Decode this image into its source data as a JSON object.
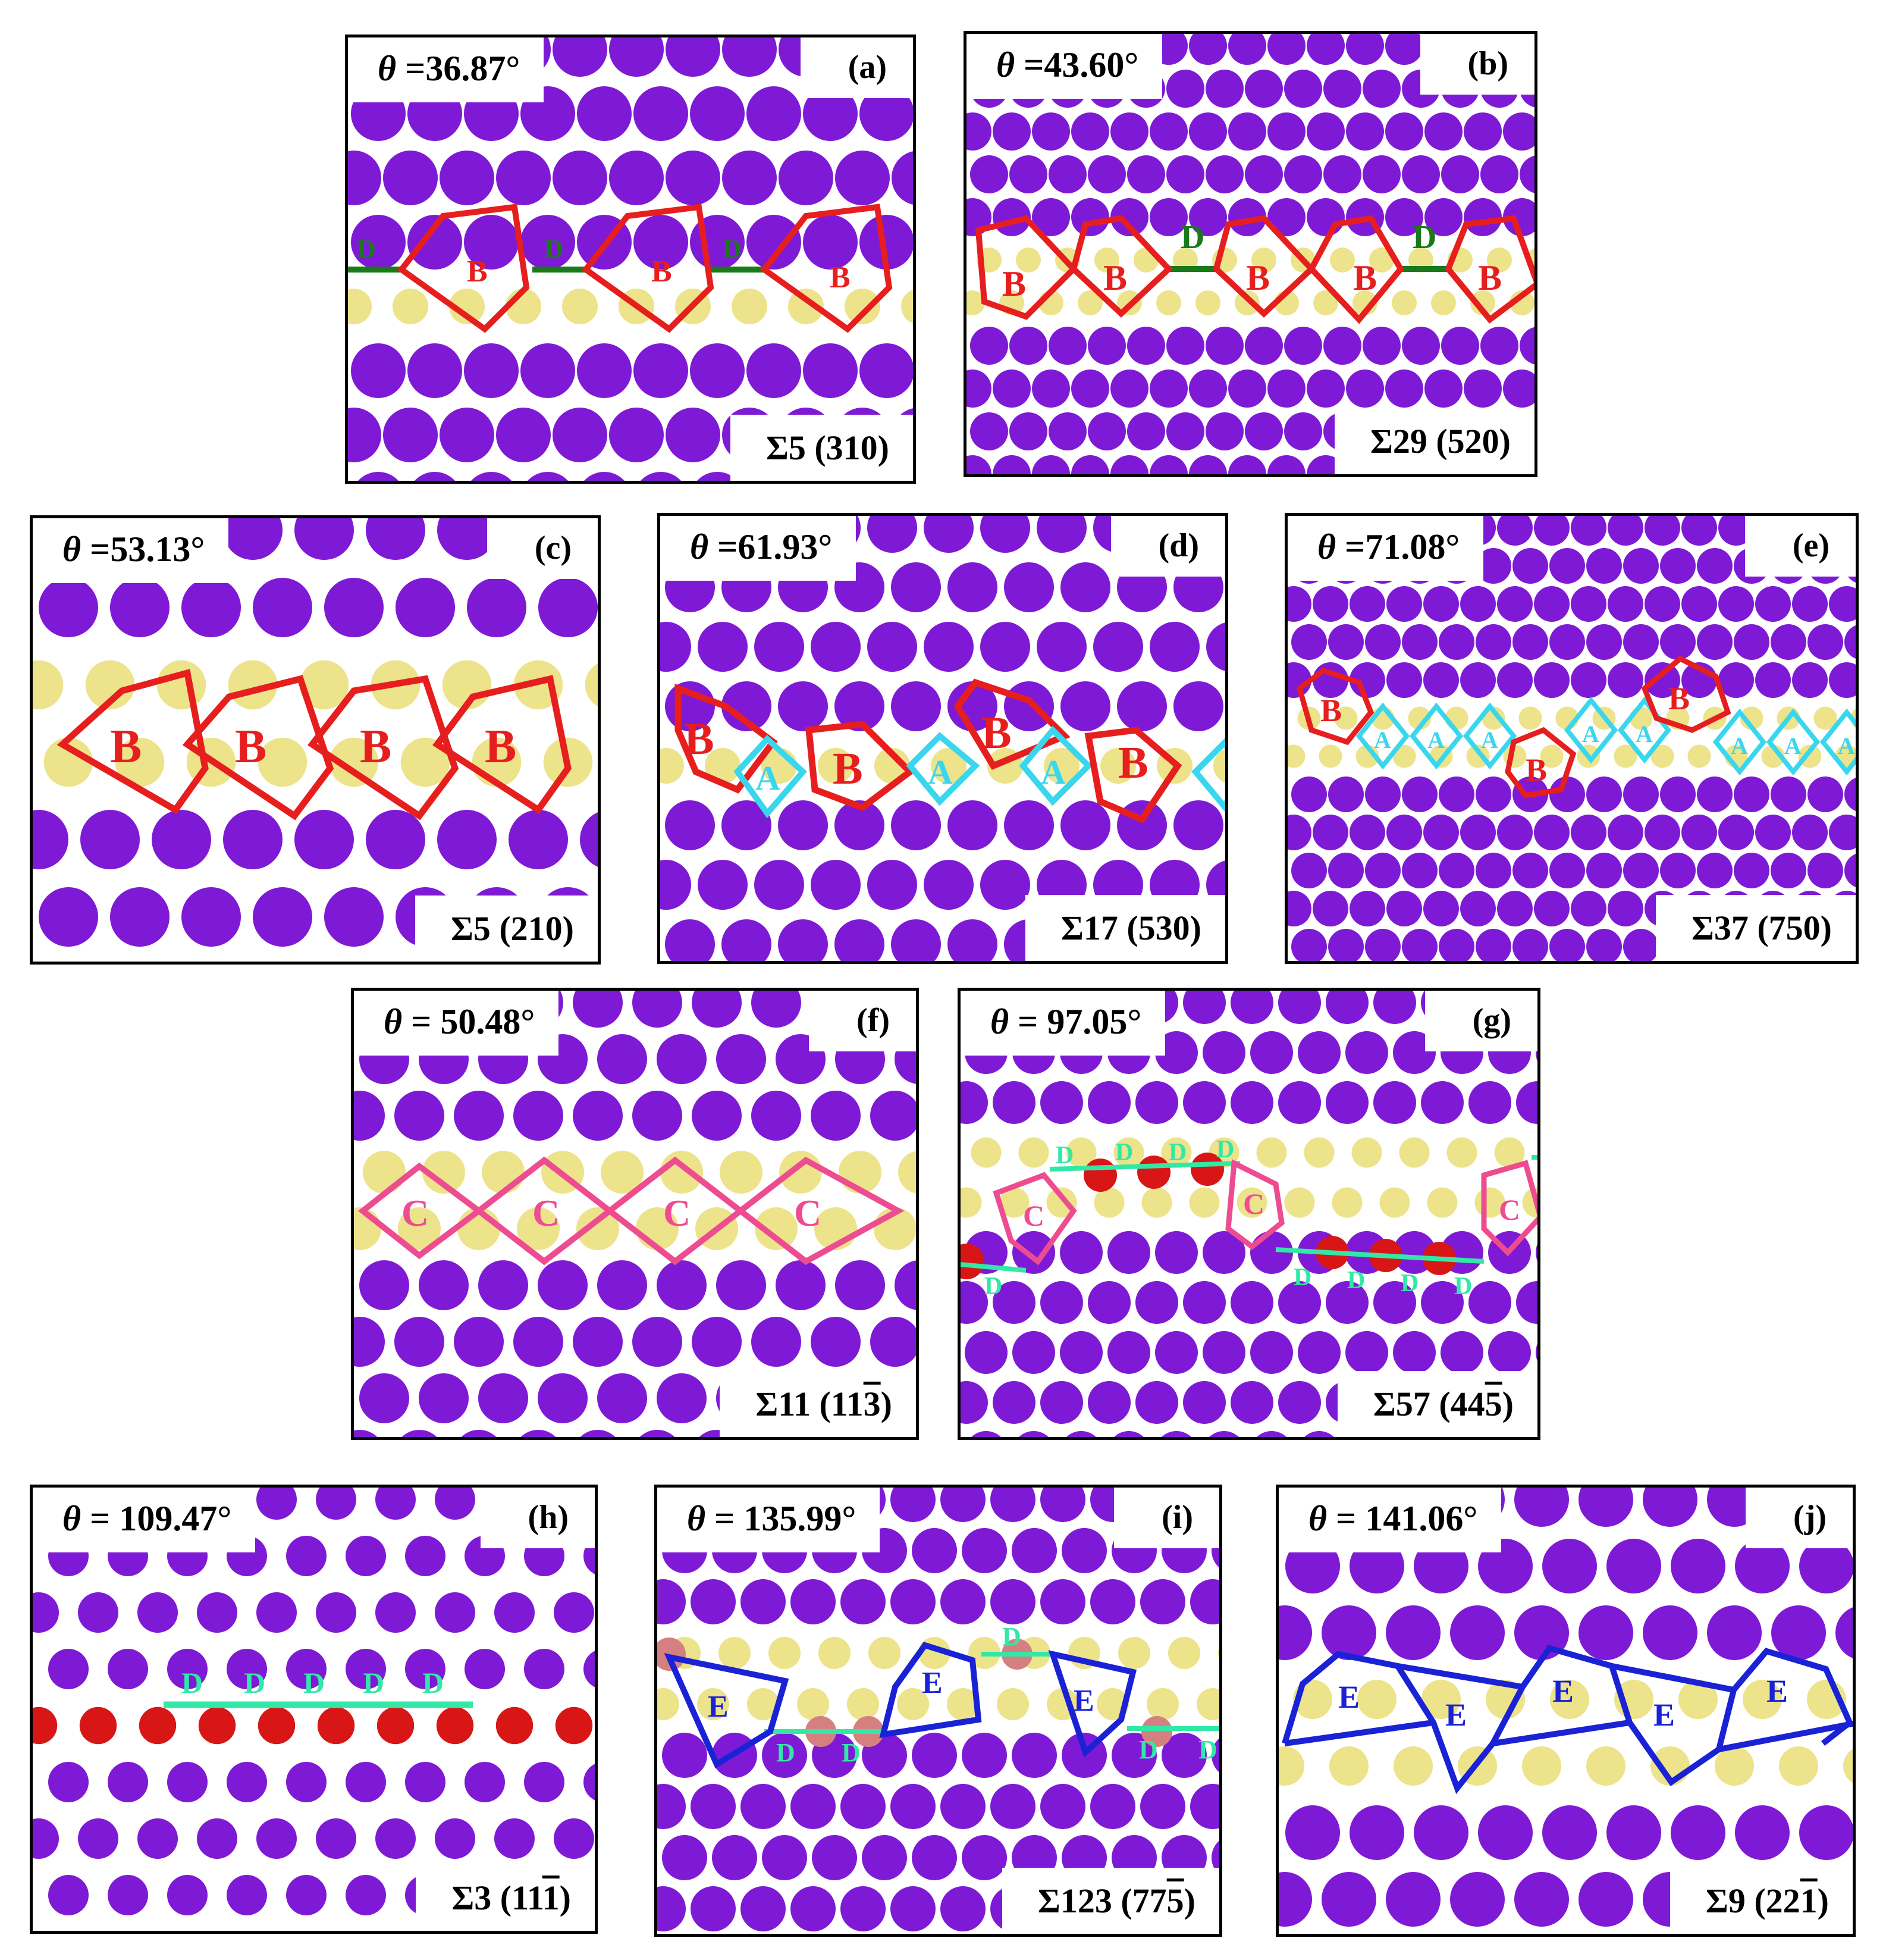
{
  "figure": {
    "panels": [
      {
        "id": "a",
        "letter": "(a)",
        "theta": "36.87°",
        "sigma": "Σ5 (310)",
        "sigma_bar": "",
        "units": [
          "B",
          "B",
          "B"
        ],
        "links": [
          "D",
          "D",
          "D"
        ]
      },
      {
        "id": "b",
        "letter": "(b)",
        "theta": "43.60°",
        "sigma": "Σ29 (520)",
        "sigma_bar": "",
        "units": [
          "B",
          "B",
          "B",
          "B",
          "B"
        ],
        "links": [
          "D",
          "D"
        ]
      },
      {
        "id": "c",
        "letter": "(c)",
        "theta": "53.13°",
        "sigma": "Σ5 (210)",
        "sigma_bar": "",
        "units": [
          "B",
          "B",
          "B",
          "B"
        ]
      },
      {
        "id": "d",
        "letter": "(d)",
        "theta": "61.93°",
        "sigma": "Σ17 (530)",
        "sigma_bar": "",
        "units": [
          "B",
          "B",
          "B",
          "B"
        ],
        "links": [
          "A",
          "A",
          "A"
        ]
      },
      {
        "id": "e",
        "letter": "(e)",
        "theta": "71.08°",
        "sigma": "Σ37 (750)",
        "sigma_bar": "",
        "units": [
          "B",
          "B",
          "B"
        ],
        "links": [
          "A",
          "A",
          "A",
          "A",
          "A",
          "A",
          "A",
          "A"
        ]
      },
      {
        "id": "f",
        "letter": "(f)",
        "theta": "50.48°",
        "sigma": "Σ11 (11",
        "sigma_bar": "3",
        "sigma_end": ")",
        "units": [
          "C",
          "C",
          "C",
          "C"
        ]
      },
      {
        "id": "g",
        "letter": "(g)",
        "theta": "97.05°",
        "sigma": "Σ57 (44",
        "sigma_bar": "5",
        "sigma_end": ")",
        "units": [
          "C",
          "C",
          "C"
        ],
        "links": [
          "D",
          "D",
          "D",
          "D",
          "D",
          "D",
          "D",
          "D",
          "D"
        ]
      },
      {
        "id": "h",
        "letter": "(h)",
        "theta": "109.47°",
        "sigma": "Σ3 (11",
        "sigma_bar": "1",
        "sigma_end": ")",
        "links": [
          "D",
          "D",
          "D",
          "D",
          "D"
        ]
      },
      {
        "id": "i",
        "letter": "(i)",
        "theta": "135.99°",
        "sigma": "Σ123 (77",
        "sigma_bar": "5",
        "sigma_end": ")",
        "units": [
          "E",
          "E",
          "E"
        ],
        "links": [
          "D",
          "D",
          "D",
          "D",
          "D"
        ]
      },
      {
        "id": "j",
        "letter": "(j)",
        "theta": "141.06°",
        "sigma": "Σ9 (22",
        "sigma_bar": "1",
        "sigma_end": ")",
        "units": [
          "E",
          "E",
          "E",
          "E",
          "E"
        ]
      }
    ],
    "theta_symbol": "θ",
    "colors": {
      "bulk_atom": "#7e1ad6",
      "boundary_atom": "#ece38a",
      "d_atom": "#d81616",
      "unit_B": "#e61e1e",
      "unit_A": "#3ad6ee",
      "unit_C": "#ee4c90",
      "unit_E": "#1a22d6",
      "link_D_dark": "#1a7a1a",
      "link_D_light": "#33e8a6"
    }
  }
}
